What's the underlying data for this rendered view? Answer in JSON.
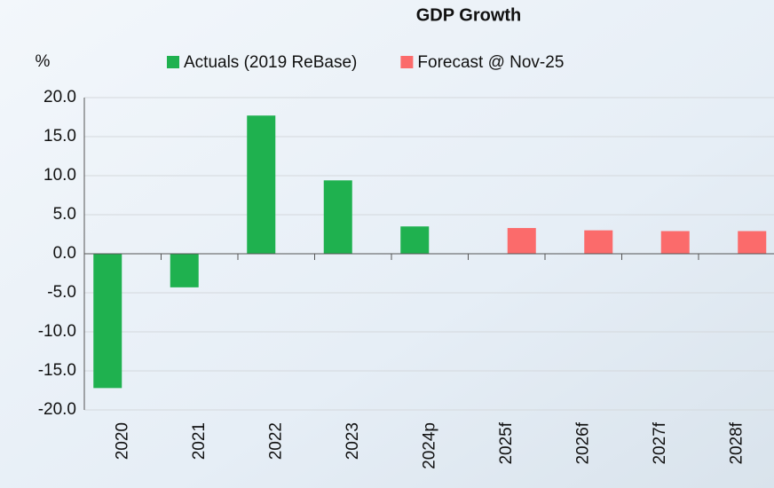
{
  "chart_data": {
    "type": "bar",
    "title": "GDP Growth",
    "y_label": "%",
    "categories": [
      "2020",
      "2021",
      "2022",
      "2023",
      "2024p",
      "2025f",
      "2026f",
      "2027f",
      "2028f"
    ],
    "series": [
      {
        "name": "Actuals (2019 ReBase)",
        "color": "#1fb14f",
        "values": [
          -17.2,
          -4.3,
          17.7,
          9.4,
          3.5,
          null,
          null,
          null,
          null
        ]
      },
      {
        "name": "Forecast @ Nov-25",
        "color": "#fb6b6b",
        "values": [
          null,
          null,
          null,
          null,
          null,
          3.3,
          3.0,
          2.9,
          2.9
        ]
      }
    ],
    "ylim": [
      -20,
      20
    ],
    "yticks": [
      {
        "value": -20,
        "label": "-20.0"
      },
      {
        "value": -15,
        "label": "-15.0"
      },
      {
        "value": -10,
        "label": "-10.0"
      },
      {
        "value": -5,
        "label": "-5.0"
      },
      {
        "value": 0,
        "label": "0.0"
      },
      {
        "value": 5,
        "label": "5.0"
      },
      {
        "value": 10,
        "label": "10.0"
      },
      {
        "value": 15,
        "label": "15.0"
      },
      {
        "value": 20,
        "label": "20.0"
      }
    ],
    "grid": true
  }
}
